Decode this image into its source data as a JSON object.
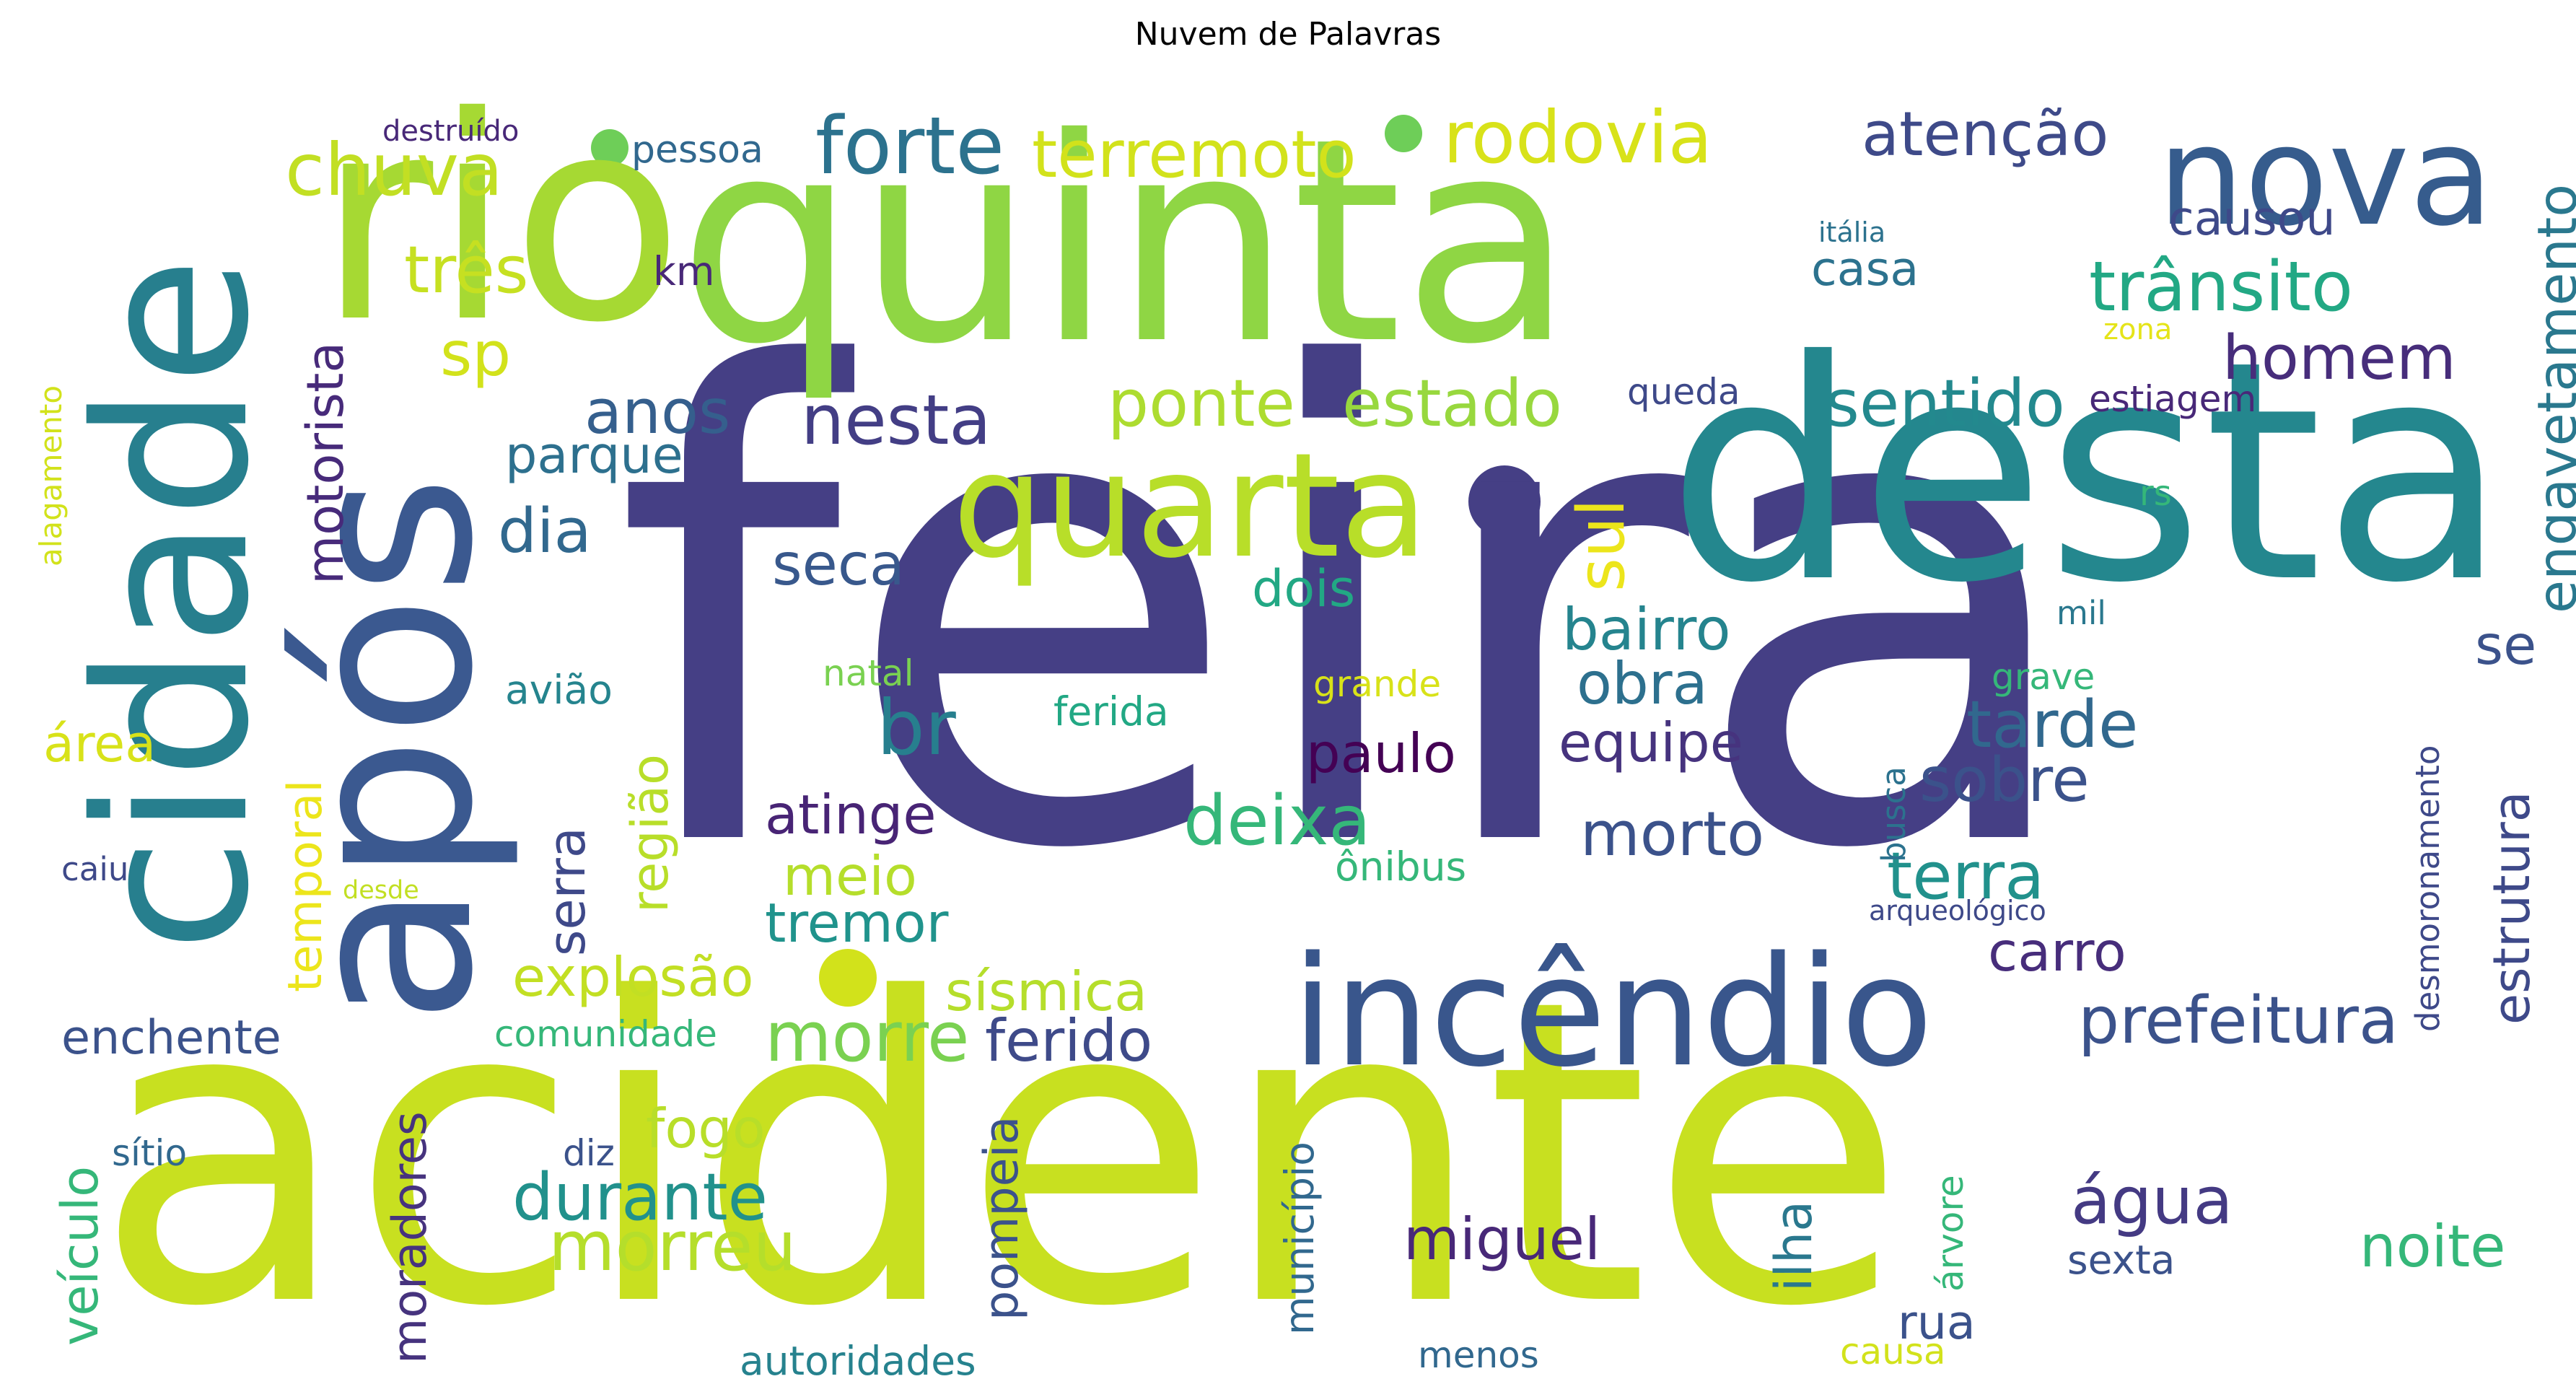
{
  "title": "Nuvem de Palavras",
  "palette": [
    "#440154",
    "#482878",
    "#3e4989",
    "#31688e",
    "#26828e",
    "#1f9e89",
    "#35b779",
    "#6ece58",
    "#b5de2b",
    "#d9e021"
  ],
  "words": [
    {
      "text": "feira",
      "color": "#453f85"
    },
    {
      "text": "acidente",
      "color": "#c8e020"
    },
    {
      "text": "rio",
      "color": "#a6d933"
    },
    {
      "text": "quinta",
      "color": "#8fd644"
    },
    {
      "text": "desta",
      "color": "#24878e"
    },
    {
      "text": "após",
      "color": "#3b5990"
    },
    {
      "text": "cidade",
      "color": "#277f8e"
    },
    {
      "text": "incêndio",
      "color": "#39568c"
    },
    {
      "text": "quarta",
      "color": "#b8de29"
    },
    {
      "text": "nova",
      "color": "#365c8d"
    },
    {
      "text": "forte",
      "color": "#2c728e"
    },
    {
      "text": "chuva",
      "color": "#c2df23"
    },
    {
      "text": "terremoto",
      "color": "#d2e21b"
    },
    {
      "text": "rodovia",
      "color": "#d8e219"
    },
    {
      "text": "atenção",
      "color": "#3e4a89"
    },
    {
      "text": "três",
      "color": "#c6e021"
    },
    {
      "text": "sp",
      "color": "#d2e21b"
    },
    {
      "text": "anos",
      "color": "#355f8d"
    },
    {
      "text": "nesta",
      "color": "#433e85"
    },
    {
      "text": "ponte",
      "color": "#addc30"
    },
    {
      "text": "estado",
      "color": "#98d83e"
    },
    {
      "text": "sentido",
      "color": "#23898e"
    },
    {
      "text": "homem",
      "color": "#472d7b"
    },
    {
      "text": "trânsito",
      "color": "#22a884"
    },
    {
      "text": "causou",
      "color": "#3e4989"
    },
    {
      "text": "casa",
      "color": "#2c728e"
    },
    {
      "text": "engavetamento",
      "color": "#2a788e"
    },
    {
      "text": "motorista",
      "color": "#472a7a"
    },
    {
      "text": "parque",
      "color": "#2d708e"
    },
    {
      "text": "dia",
      "color": "#31688e"
    },
    {
      "text": "sul",
      "color": "#ece51b"
    },
    {
      "text": "seca",
      "color": "#38588c"
    },
    {
      "text": "dois",
      "color": "#22a884"
    },
    {
      "text": "bairro",
      "color": "#25848e"
    },
    {
      "text": "obra",
      "color": "#2d708e"
    },
    {
      "text": "br",
      "color": "#277f8e"
    },
    {
      "text": "tarde",
      "color": "#31688e"
    },
    {
      "text": "sobre",
      "color": "#3b528b"
    },
    {
      "text": "deixa",
      "color": "#35b779"
    },
    {
      "text": "atinge",
      "color": "#482475"
    },
    {
      "text": "morto",
      "color": "#3b528b"
    },
    {
      "text": "paulo",
      "color": "#440154"
    },
    {
      "text": "equipe",
      "color": "#46337e"
    },
    {
      "text": "meio",
      "color": "#b5de2b"
    },
    {
      "text": "tremor",
      "color": "#20938c"
    },
    {
      "text": "terra",
      "color": "#21918c"
    },
    {
      "text": "carro",
      "color": "#472d7b"
    },
    {
      "text": "explosão",
      "color": "#c2df23"
    },
    {
      "text": "sísmica",
      "color": "#b5de2b"
    },
    {
      "text": "morre",
      "color": "#7ad151"
    },
    {
      "text": "ferido",
      "color": "#3e4a89"
    },
    {
      "text": "prefeitura",
      "color": "#3b528b"
    },
    {
      "text": "enchente",
      "color": "#3b528b"
    },
    {
      "text": "fogo",
      "color": "#b8de29"
    },
    {
      "text": "durante",
      "color": "#21918c"
    },
    {
      "text": "morreu",
      "color": "#b5de2b"
    },
    {
      "text": "água",
      "color": "#443a83"
    },
    {
      "text": "noite",
      "color": "#35b779"
    },
    {
      "text": "miguel",
      "color": "#482878"
    },
    {
      "text": "rua",
      "color": "#3b528b"
    },
    {
      "text": "sexta",
      "color": "#3b528b"
    },
    {
      "text": "menos",
      "color": "#31688e"
    },
    {
      "text": "causa",
      "color": "#d2e21b"
    },
    {
      "text": "autoridades",
      "color": "#26828e"
    },
    {
      "text": "comunidade",
      "color": "#35b779"
    },
    {
      "text": "sítio",
      "color": "#31688e"
    },
    {
      "text": "diz",
      "color": "#3b528b"
    },
    {
      "text": "caiu",
      "color": "#3e4989"
    },
    {
      "text": "desde",
      "color": "#c2df23"
    },
    {
      "text": "ônibus",
      "color": "#35b779"
    },
    {
      "text": "arqueológico",
      "color": "#3e4989"
    },
    {
      "text": "busca",
      "color": "#2c728e"
    },
    {
      "text": "grave",
      "color": "#35b779"
    },
    {
      "text": "mil",
      "color": "#2a788e"
    },
    {
      "text": "ferida",
      "color": "#22a884"
    },
    {
      "text": "grande",
      "color": "#d8e219"
    },
    {
      "text": "natal",
      "color": "#7ad151"
    },
    {
      "text": "avião",
      "color": "#25848e"
    },
    {
      "text": "área",
      "color": "#d8e219"
    },
    {
      "text": "temporal",
      "color": "#ece51b"
    },
    {
      "text": "serra",
      "color": "#3e4989"
    },
    {
      "text": "região",
      "color": "#b8de29"
    },
    {
      "text": "veículo",
      "color": "#35b779"
    },
    {
      "text": "moradores",
      "color": "#46337e"
    },
    {
      "text": "pompeia",
      "color": "#3b528b"
    },
    {
      "text": "ilha",
      "color": "#2a788e"
    },
    {
      "text": "município",
      "color": "#31688e"
    },
    {
      "text": "árvore",
      "color": "#35b779"
    },
    {
      "text": "alagamento",
      "color": "#d2e21b"
    },
    {
      "text": "destruído",
      "color": "#482878"
    },
    {
      "text": "pessoa",
      "color": "#31688e"
    },
    {
      "text": "km",
      "color": "#482878"
    },
    {
      "text": "itália",
      "color": "#2c728e"
    },
    {
      "text": "zona",
      "color": "#e5e419"
    },
    {
      "text": "queda",
      "color": "#3e4989"
    },
    {
      "text": "estiagem",
      "color": "#482878"
    },
    {
      "text": "rs",
      "color": "#35b779"
    },
    {
      "text": "estrutura",
      "color": "#3e4989"
    },
    {
      "text": "se",
      "color": "#3b528b"
    },
    {
      "text": "desmoronamento",
      "color": "#3e4989"
    }
  ]
}
